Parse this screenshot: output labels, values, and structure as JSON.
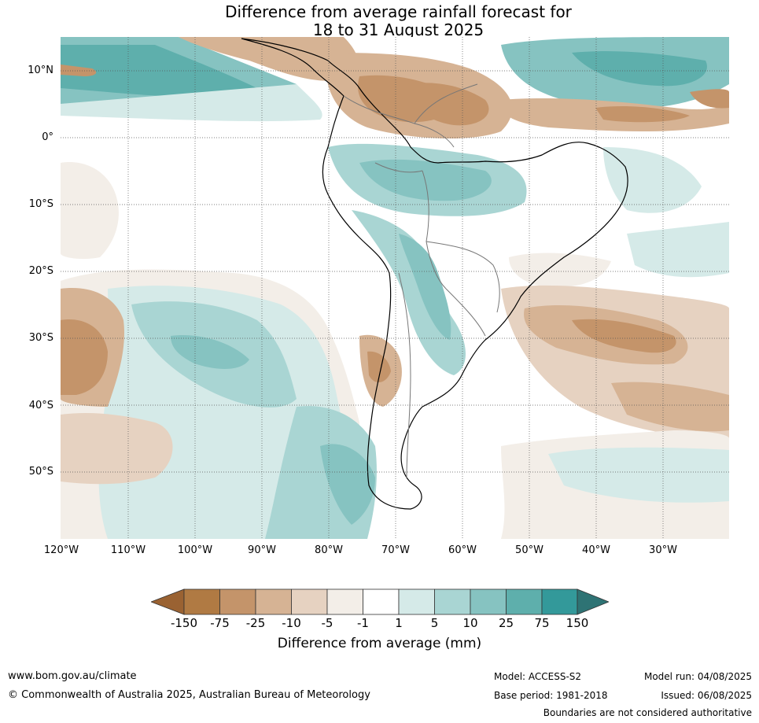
{
  "title": {
    "line1": "Difference from average rainfall forecast for",
    "line2": "18 to 31 August 2025"
  },
  "map": {
    "lat_labels": [
      "10°N",
      "0°",
      "10°S",
      "20°S",
      "30°S",
      "40°S",
      "50°S"
    ],
    "lon_labels": [
      "120°W",
      "110°W",
      "100°W",
      "90°W",
      "80°W",
      "70°W",
      "60°W",
      "50°W",
      "40°W",
      "30°W"
    ]
  },
  "colorbar": {
    "title": "Difference from average (mm)",
    "ticks": [
      "-150",
      "-75",
      "-25",
      "-10",
      "-5",
      "-1",
      "1",
      "5",
      "10",
      "25",
      "75",
      "150"
    ],
    "colors": [
      "#9a6232",
      "#b07a43",
      "#c4946a",
      "#d6b394",
      "#e6d2c1",
      "#f3eee8",
      "#ffffff",
      "#d5eae8",
      "#a9d5d3",
      "#86c3c1",
      "#5eafac",
      "#33999a",
      "#2e7374"
    ]
  },
  "footer": {
    "website": "www.bom.gov.au/climate",
    "copyright": "© Commonwealth of Australia 2025, Australian Bureau of Meteorology",
    "model": "Model: ACCESS-S2",
    "base_period": "Base period: 1981-2018",
    "model_run": "Model run: 04/08/2025",
    "issued": "Issued: 06/08/2025",
    "disclaimer": "Boundaries are not considered authoritative"
  }
}
